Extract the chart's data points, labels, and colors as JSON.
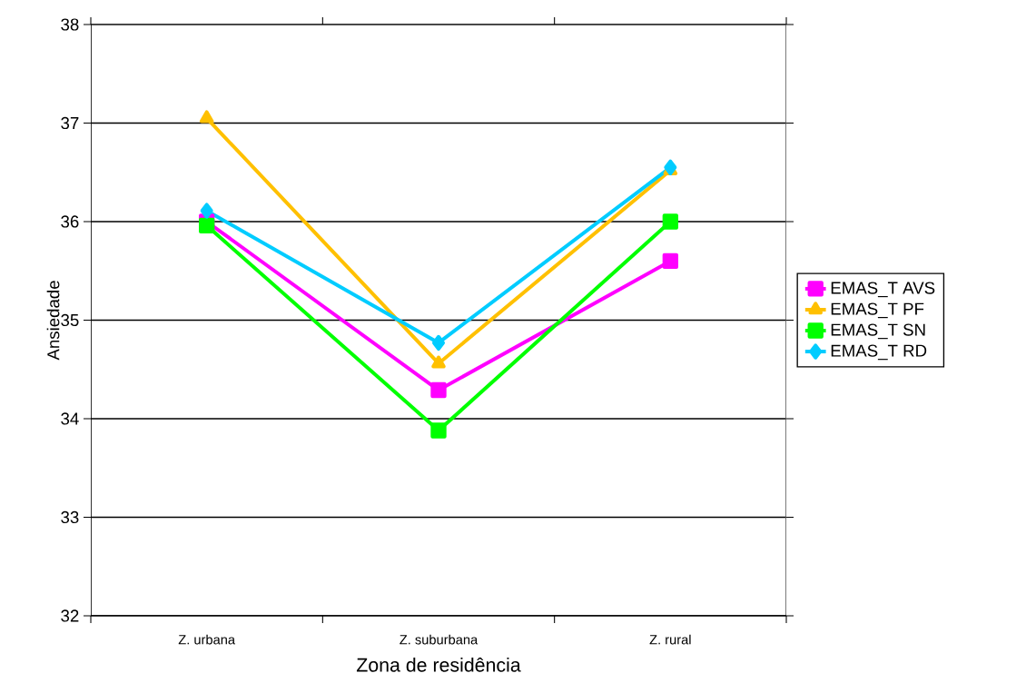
{
  "chart_data": {
    "type": "line",
    "xlabel": "Zona de residência",
    "ylabel": "Ansiedade",
    "categories": [
      "Z. urbana",
      "Z. suburbana",
      "Z. rural"
    ],
    "series": [
      {
        "name": "EMAS_T AVS",
        "color": "#ff00ff",
        "marker": "square",
        "values": [
          36.0,
          34.29,
          35.6
        ]
      },
      {
        "name": "EMAS_T PF",
        "color": "#ffc000",
        "marker": "triangle",
        "values": [
          37.05,
          34.56,
          36.52
        ]
      },
      {
        "name": "EMAS_T SN",
        "color": "#00ff00",
        "marker": "square",
        "values": [
          35.96,
          33.88,
          36.0
        ]
      },
      {
        "name": "EMAS_T RD",
        "color": "#00ccff",
        "marker": "diamond",
        "values": [
          36.11,
          34.77,
          36.55
        ]
      }
    ],
    "ylim": [
      32,
      38
    ],
    "yticks": [
      32,
      33,
      34,
      35,
      36,
      37,
      38
    ],
    "grid": "y",
    "legend": "right",
    "line_style": "solid"
  }
}
